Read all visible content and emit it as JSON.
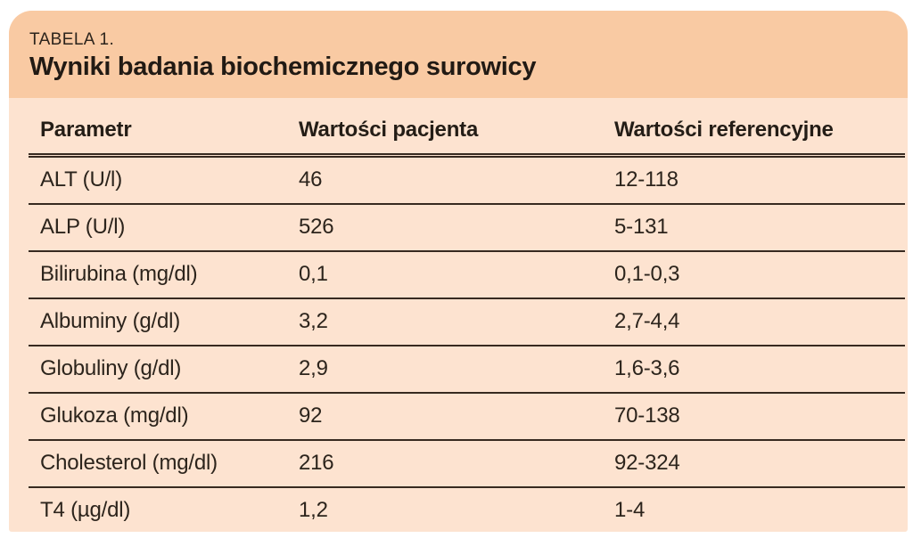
{
  "caption": {
    "label": "TABELA 1.",
    "title": "Wyniki badania biochemicznego surowicy"
  },
  "table": {
    "columns": [
      "Parametr",
      "Wartości pacjenta",
      "Wartości referencyjne"
    ],
    "rows": [
      {
        "parameter": "ALT (U/l)",
        "patient": "46",
        "reference": "12-118"
      },
      {
        "parameter": "ALP (U/l)",
        "patient": "526",
        "reference": "5-131"
      },
      {
        "parameter": "Bilirubina (mg/dl)",
        "patient": "0,1",
        "reference": "0,1-0,3"
      },
      {
        "parameter": "Albuminy (g/dl)",
        "patient": "3,2",
        "reference": "2,7-4,4"
      },
      {
        "parameter": "Globuliny (g/dl)",
        "patient": "2,9",
        "reference": "1,6-3,6"
      },
      {
        "parameter": "Glukoza (mg/dl)",
        "patient": "92",
        "reference": "70-138"
      },
      {
        "parameter": "Cholesterol (mg/dl)",
        "patient": "216",
        "reference": "92-324"
      },
      {
        "parameter": "T4 (µg/dl)",
        "patient": "1,2",
        "reference": "1-4"
      }
    ]
  },
  "colors": {
    "header_band_bg": "#f9caa3",
    "table_body_bg": "#fde3d0",
    "rule_color": "#372a20",
    "text_color": "#2c241c"
  }
}
